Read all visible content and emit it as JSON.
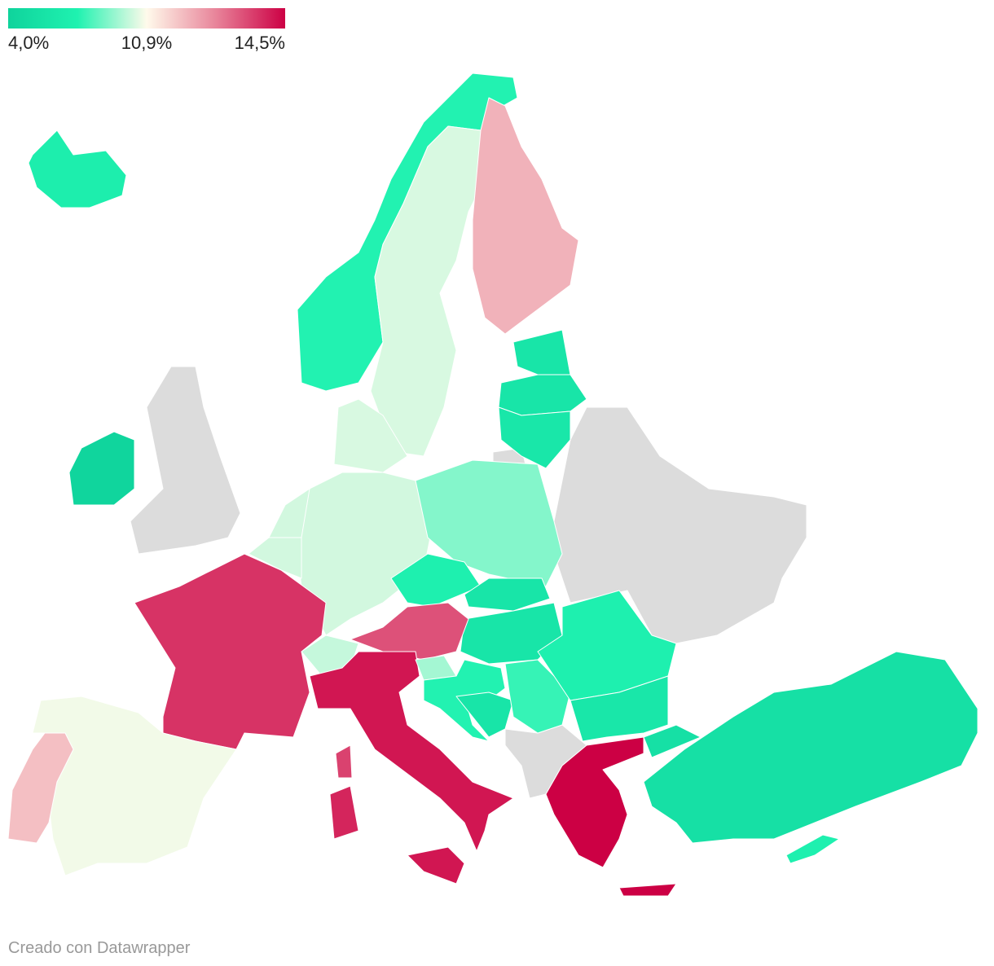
{
  "chart_data": {
    "type": "choropleth",
    "scale_colors": [
      "#0fd39c",
      "#1ff2b0",
      "#fffaeb",
      "#e8849a",
      "#cc0044"
    ],
    "legend_ticks": [
      {
        "value": 4.0,
        "label": "4,0%"
      },
      {
        "value": 10.9,
        "label": "10,9%"
      },
      {
        "value": 14.5,
        "label": "14,5%"
      }
    ],
    "no_data_color": "#dcdcdc",
    "values": [
      7.0,
      7.5,
      10.3,
      12.0,
      6.0,
      6.0,
      6.2,
      4.2,
      10.3,
      10.2,
      10.2,
      10.2,
      9.0,
      7.2,
      6.0,
      6.0,
      13.4,
      10.0,
      13.8,
      10.7,
      11.8,
      14.2,
      14.2,
      14.0,
      13.6,
      9.5,
      7.5,
      6.0,
      7.8,
      7.2,
      6.2,
      14.5,
      14.5,
      5.5,
      5.5,
      7.2
    ],
    "credit": "Creado con Datawrapper"
  }
}
